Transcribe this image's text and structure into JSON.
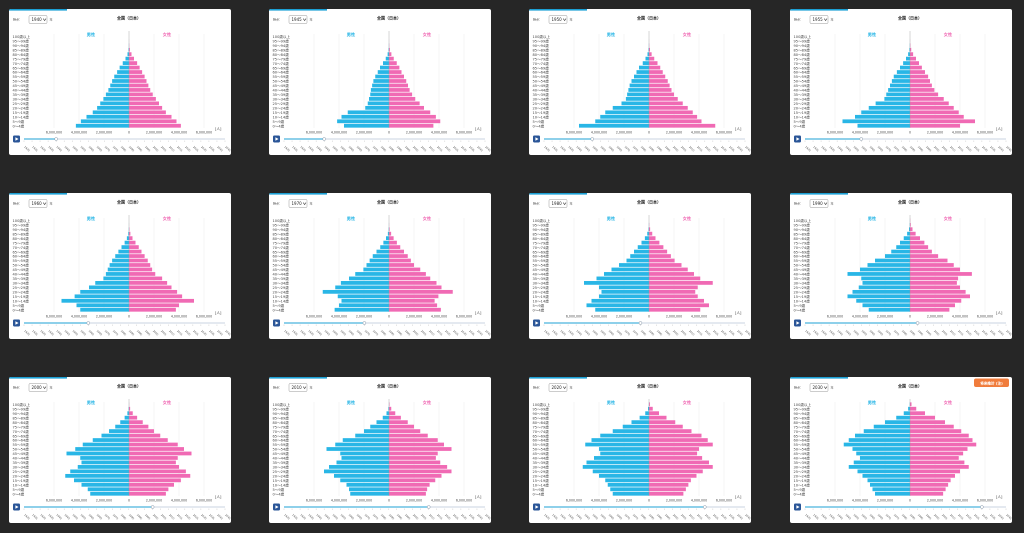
{
  "colors": {
    "male": "#29b6e6",
    "female": "#f06ab4",
    "accent_bar": "#1ca0d4",
    "play": "#2a5597",
    "badge": "#f07c3c",
    "background": "#262626"
  },
  "header": {
    "year_prefix": "時点：",
    "year_suffix": "年",
    "region_title": "全国（日本）",
    "male_label": "男性",
    "female_label": "女性",
    "unit_label": "[人]"
  },
  "estimate_badge": "将来推計 (注)",
  "age_groups": [
    "100歳以上",
    "95〜99歳",
    "90〜94歳",
    "85〜89歳",
    "80〜84歳",
    "75〜79歳",
    "70〜74歳",
    "65〜69歳",
    "60〜64歳",
    "55〜59歳",
    "50〜54歳",
    "45〜49歳",
    "40〜44歳",
    "35〜39歳",
    "30〜34歳",
    "25〜29歳",
    "20〜24歳",
    "15〜19歳",
    "10〜14歳",
    "5〜9歳",
    "0〜4歳"
  ],
  "x_axis": {
    "left_ticks": [
      "6,000,000",
      "4,000,000",
      "2,000,000"
    ],
    "zero": "0",
    "right_ticks": [
      "2,000,000",
      "4,000,000",
      "6,000,000"
    ]
  },
  "timeline_years": [
    "1920",
    "1925",
    "1930",
    "1935",
    "1940",
    "1945",
    "1950",
    "1955",
    "1960",
    "1965",
    "1970",
    "1975",
    "1980",
    "1985",
    "1990",
    "1995",
    "2000",
    "2005",
    "2010",
    "2015",
    "2020",
    "2025",
    "2030",
    "2035",
    "2040",
    "2045"
  ],
  "chart_data": [
    {
      "type": "bar",
      "year": "1940",
      "xlim": [
        -6000000,
        6000000
      ],
      "categories_from": "age_groups",
      "male": [
        0,
        2000,
        10000,
        40000,
        120000,
        280000,
        500000,
        750000,
        950000,
        1180000,
        1350000,
        1500000,
        1650000,
        1850000,
        2050000,
        2300000,
        2550000,
        2900000,
        3400000,
        3850000,
        4250000
      ],
      "female": [
        0,
        4000,
        20000,
        70000,
        200000,
        400000,
        650000,
        850000,
        1050000,
        1250000,
        1400000,
        1550000,
        1700000,
        1900000,
        2150000,
        2400000,
        2650000,
        2950000,
        3400000,
        3800000,
        4150000
      ]
    },
    {
      "type": "bar",
      "year": "1945",
      "xlim": [
        -6000000,
        6000000
      ],
      "categories_from": "age_groups",
      "male": [
        0,
        1000,
        8000,
        35000,
        110000,
        260000,
        480000,
        720000,
        900000,
        1100000,
        1250000,
        1350000,
        1450000,
        1500000,
        1600000,
        1700000,
        1900000,
        3300000,
        3800000,
        4150000,
        3600000
      ],
      "female": [
        0,
        3000,
        20000,
        70000,
        190000,
        380000,
        620000,
        830000,
        1000000,
        1200000,
        1380000,
        1520000,
        1650000,
        1850000,
        2100000,
        2450000,
        2800000,
        3300000,
        3750000,
        4100000,
        3550000
      ]
    },
    {
      "type": "bar",
      "year": "1950",
      "xlim": [
        -6000000,
        6000000
      ],
      "categories_from": "age_groups",
      "male": [
        0,
        2000,
        10000,
        40000,
        120000,
        280000,
        500000,
        800000,
        1000000,
        1200000,
        1400000,
        1550000,
        1650000,
        1750000,
        1850000,
        2200000,
        2900000,
        3500000,
        3900000,
        4300000,
        5600000
      ],
      "female": [
        0,
        4000,
        20000,
        80000,
        210000,
        420000,
        680000,
        900000,
        1100000,
        1300000,
        1500000,
        1650000,
        1800000,
        2000000,
        2300000,
        2700000,
        3100000,
        3500000,
        3850000,
        4200000,
        5300000
      ]
    },
    {
      "type": "bar",
      "year": "1955",
      "xlim": [
        -6000000,
        6000000
      ],
      "categories_from": "age_groups",
      "male": [
        0,
        2000,
        15000,
        50000,
        150000,
        320000,
        550000,
        800000,
        1050000,
        1300000,
        1450000,
        1600000,
        1750000,
        1900000,
        2050000,
        2750000,
        3300000,
        3900000,
        4400000,
        5400000,
        4200000
      ],
      "female": [
        0,
        5000,
        30000,
        100000,
        250000,
        480000,
        720000,
        950000,
        1200000,
        1450000,
        1600000,
        1750000,
        1950000,
        2250000,
        2700000,
        3100000,
        3500000,
        3900000,
        4300000,
        5200000,
        4000000
      ]
    },
    {
      "type": "bar",
      "year": "1960",
      "xlim": [
        -6000000,
        6000000
      ],
      "categories_from": "age_groups",
      "male": [
        0,
        3000,
        15000,
        60000,
        170000,
        350000,
        600000,
        850000,
        1100000,
        1350000,
        1550000,
        1700000,
        1850000,
        2050000,
        2700000,
        3200000,
        3900000,
        4350000,
        5400000,
        4200000,
        3900000
      ],
      "female": [
        0,
        5000,
        35000,
        110000,
        280000,
        520000,
        780000,
        1000000,
        1250000,
        1500000,
        1700000,
        1850000,
        2100000,
        2650000,
        3050000,
        3400000,
        3850000,
        4250000,
        5200000,
        4000000,
        3750000
      ]
    },
    {
      "type": "bar",
      "year": "1970",
      "xlim": [
        -6000000,
        6000000
      ],
      "categories_from": "age_groups",
      "male": [
        0,
        5000,
        25000,
        90000,
        240000,
        450000,
        700000,
        1000000,
        1300000,
        1550000,
        1800000,
        2050000,
        2700000,
        3200000,
        3850000,
        4300000,
        5300000,
        4100000,
        3800000,
        4000000,
        4350000
      ],
      "female": [
        0,
        10000,
        50000,
        170000,
        370000,
        630000,
        900000,
        1200000,
        1500000,
        1750000,
        2000000,
        2500000,
        2950000,
        3300000,
        3800000,
        4200000,
        5100000,
        3950000,
        3650000,
        3850000,
        4150000
      ]
    },
    {
      "type": "bar",
      "year": "1980",
      "xlim": [
        -6000000,
        6000000
      ],
      "categories_from": "age_groups",
      "male": [
        0,
        8000,
        40000,
        140000,
        330000,
        600000,
        900000,
        1200000,
        1500000,
        1800000,
        2400000,
        3000000,
        3600000,
        4200000,
        5200000,
        4000000,
        3800000,
        4000000,
        4600000,
        5000000,
        4300000
      ],
      "female": [
        0,
        20000,
        90000,
        260000,
        520000,
        830000,
        1150000,
        1450000,
        1750000,
        2050000,
        2600000,
        3100000,
        3600000,
        4100000,
        5100000,
        3900000,
        3700000,
        3900000,
        4400000,
        4800000,
        4100000
      ]
    },
    {
      "type": "bar",
      "year": "1990",
      "xlim": [
        -6000000,
        6000000
      ],
      "categories_from": "age_groups",
      "male": [
        5000,
        20000,
        80000,
        230000,
        500000,
        800000,
        1100000,
        1500000,
        2000000,
        2800000,
        3400000,
        4000000,
        5000000,
        3900000,
        3800000,
        4100000,
        4600000,
        5000000,
        4300000,
        3800000,
        3300000
      ],
      "female": [
        15000,
        60000,
        200000,
        450000,
        800000,
        1150000,
        1450000,
        1750000,
        2250000,
        3000000,
        3500000,
        4000000,
        4950000,
        3850000,
        3750000,
        4000000,
        4450000,
        4800000,
        4100000,
        3600000,
        3150000
      ]
    },
    {
      "type": "bar",
      "year": "2000",
      "xlim": [
        -6000000,
        6000000
      ],
      "categories_from": "age_groups",
      "male": [
        3000,
        30000,
        130000,
        350000,
        700000,
        1100000,
        1600000,
        2200000,
        2900000,
        3700000,
        4300000,
        5000000,
        3900000,
        3800000,
        4100000,
        4700000,
        5100000,
        4400000,
        3800000,
        3300000,
        3100000
      ],
      "female": [
        12000,
        90000,
        300000,
        650000,
        1100000,
        1550000,
        2000000,
        2500000,
        3100000,
        3900000,
        4400000,
        5000000,
        3900000,
        3750000,
        4000000,
        4550000,
        4900000,
        4150000,
        3600000,
        3150000,
        2950000
      ],
      "note": "x ticks read as 6,000,000 / 4,000,000 / 2,000,000"
    },
    {
      "type": "bar",
      "year": "2010",
      "xlim": [
        -6000000,
        6000000
      ],
      "categories_from": "age_groups",
      "male": [
        6000,
        50000,
        200000,
        500000,
        1000000,
        1500000,
        2000000,
        2700000,
        3700000,
        4300000,
        5000000,
        3900000,
        3800000,
        4200000,
        4800000,
        5200000,
        4400000,
        3900000,
        3400000,
        3200000,
        3100000
      ],
      "female": [
        40000,
        180000,
        500000,
        950000,
        1500000,
        2000000,
        2500000,
        3100000,
        3900000,
        4400000,
        5000000,
        3900000,
        3750000,
        4100000,
        4650000,
        5000000,
        4200000,
        3700000,
        3250000,
        3050000,
        2950000
      ]
    },
    {
      "type": "bar",
      "year": "2020",
      "xlim": [
        -6000000,
        6000000
      ],
      "categories_from": "age_groups",
      "male": [
        10000,
        80000,
        300000,
        750000,
        1400000,
        2100000,
        2900000,
        3900000,
        4600000,
        5100000,
        4000000,
        3900000,
        4400000,
        5000000,
        5300000,
        4500000,
        4000000,
        3500000,
        3300000,
        3100000,
        2900000
      ],
      "female": [
        70000,
        300000,
        800000,
        1400000,
        2100000,
        2700000,
        3400000,
        4200000,
        4700000,
        5100000,
        4000000,
        3850000,
        4250000,
        4800000,
        5100000,
        4300000,
        3800000,
        3350000,
        3150000,
        2950000,
        2750000
      ]
    },
    {
      "type": "bar",
      "year": "2030",
      "xlim": [
        -6000000,
        6000000
      ],
      "categories_from": "age_groups",
      "estimate": true,
      "male": [
        20000,
        150000,
        500000,
        1100000,
        2000000,
        2900000,
        3700000,
        4400000,
        4900000,
        5300000,
        4600000,
        4300000,
        4000000,
        4500000,
        4900000,
        4200000,
        3800000,
        3400000,
        3200000,
        3000000,
        2800000
      ],
      "female": [
        120000,
        500000,
        1200000,
        2000000,
        2800000,
        3500000,
        4100000,
        4700000,
        5000000,
        5300000,
        4600000,
        4250000,
        3900000,
        4350000,
        4700000,
        4000000,
        3600000,
        3250000,
        3050000,
        2850000,
        2650000
      ]
    }
  ]
}
